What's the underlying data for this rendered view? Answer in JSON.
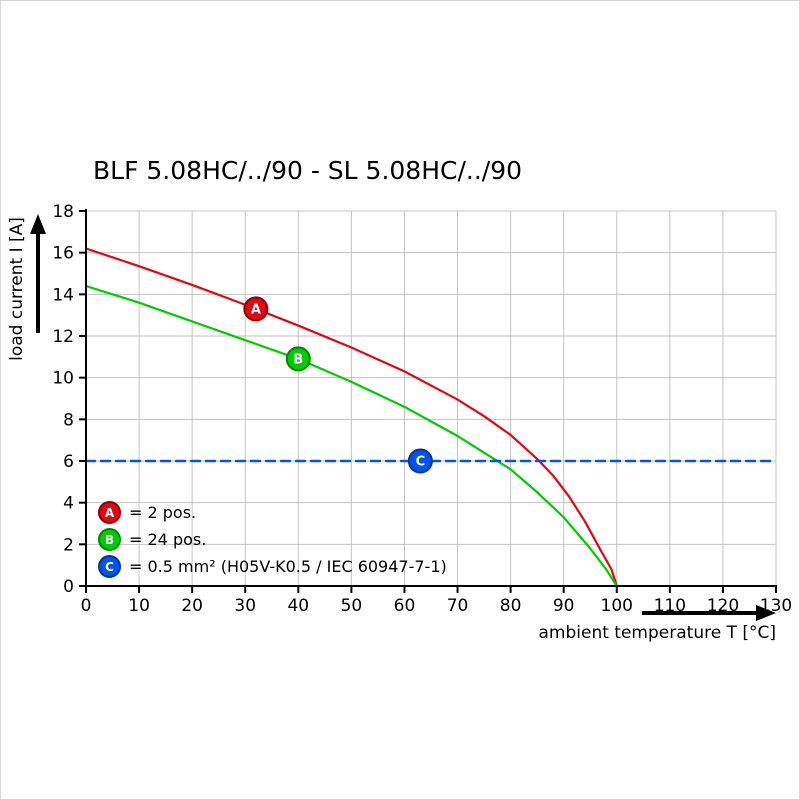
{
  "title": "BLF 5.08HC/../90 - SL 5.08HC/../90",
  "axes": {
    "x_label": "ambient temperature T [°C]",
    "y_label": "load current I [A]"
  },
  "legend": [
    {
      "key": "A",
      "label": "= 2 pos.",
      "color": "#e30613",
      "edge_color": "#8f0000"
    },
    {
      "key": "B",
      "label": "= 24 pos.",
      "color": "#00cc00",
      "edge_color": "#008800"
    },
    {
      "key": "C",
      "label": "= 0.5 mm² (H05V-K0.5 / IEC 60947-7-1)",
      "color": "#0055e6",
      "edge_color": "#0033aa"
    }
  ],
  "chart_data": {
    "type": "line",
    "title": "BLF 5.08HC/../90 - SL 5.08HC/../90",
    "xlabel": "ambient temperature T [°C]",
    "ylabel": "load current I [A]",
    "xlim": [
      0,
      130
    ],
    "ylim": [
      0,
      18
    ],
    "x_ticks": [
      0,
      10,
      20,
      30,
      40,
      50,
      60,
      70,
      80,
      90,
      100,
      110,
      120,
      130
    ],
    "y_ticks": [
      0,
      2,
      4,
      6,
      8,
      10,
      12,
      14,
      16,
      18
    ],
    "grid": true,
    "grid_color": "#c3c3c3",
    "legend_position": "lower-left-inside",
    "series": [
      {
        "name": "A",
        "label": "2 pos.",
        "color": "#e30613",
        "edge_color": "#8f0000",
        "style": "solid",
        "marker_at": [
          32,
          13.3
        ],
        "points": [
          [
            0,
            16.2
          ],
          [
            10,
            15.35
          ],
          [
            20,
            14.45
          ],
          [
            30,
            13.5
          ],
          [
            40,
            12.5
          ],
          [
            50,
            11.45
          ],
          [
            60,
            10.3
          ],
          [
            70,
            8.95
          ],
          [
            75,
            8.15
          ],
          [
            80,
            7.25
          ],
          [
            85,
            6.1
          ],
          [
            88,
            5.3
          ],
          [
            91,
            4.3
          ],
          [
            94,
            3.1
          ],
          [
            97,
            1.7
          ],
          [
            99,
            0.8
          ],
          [
            100,
            0
          ]
        ]
      },
      {
        "name": "B",
        "label": "24 pos.",
        "color": "#00cc00",
        "edge_color": "#008800",
        "style": "solid",
        "marker_at": [
          40,
          10.9
        ],
        "points": [
          [
            0,
            14.4
          ],
          [
            10,
            13.6
          ],
          [
            20,
            12.7
          ],
          [
            30,
            11.8
          ],
          [
            40,
            10.9
          ],
          [
            50,
            9.8
          ],
          [
            60,
            8.6
          ],
          [
            70,
            7.2
          ],
          [
            75,
            6.4
          ],
          [
            80,
            5.6
          ],
          [
            85,
            4.5
          ],
          [
            90,
            3.3
          ],
          [
            95,
            1.8
          ],
          [
            98,
            0.8
          ],
          [
            100,
            0
          ]
        ]
      },
      {
        "name": "C",
        "label": "0.5 mm² (H05V-K0.5 / IEC 60947-7-1)",
        "color": "#0055e6",
        "edge_color": "#0033aa",
        "style": "dashed",
        "marker_at": [
          63,
          6
        ],
        "points": [
          [
            0,
            6
          ],
          [
            130,
            6
          ]
        ]
      }
    ]
  }
}
